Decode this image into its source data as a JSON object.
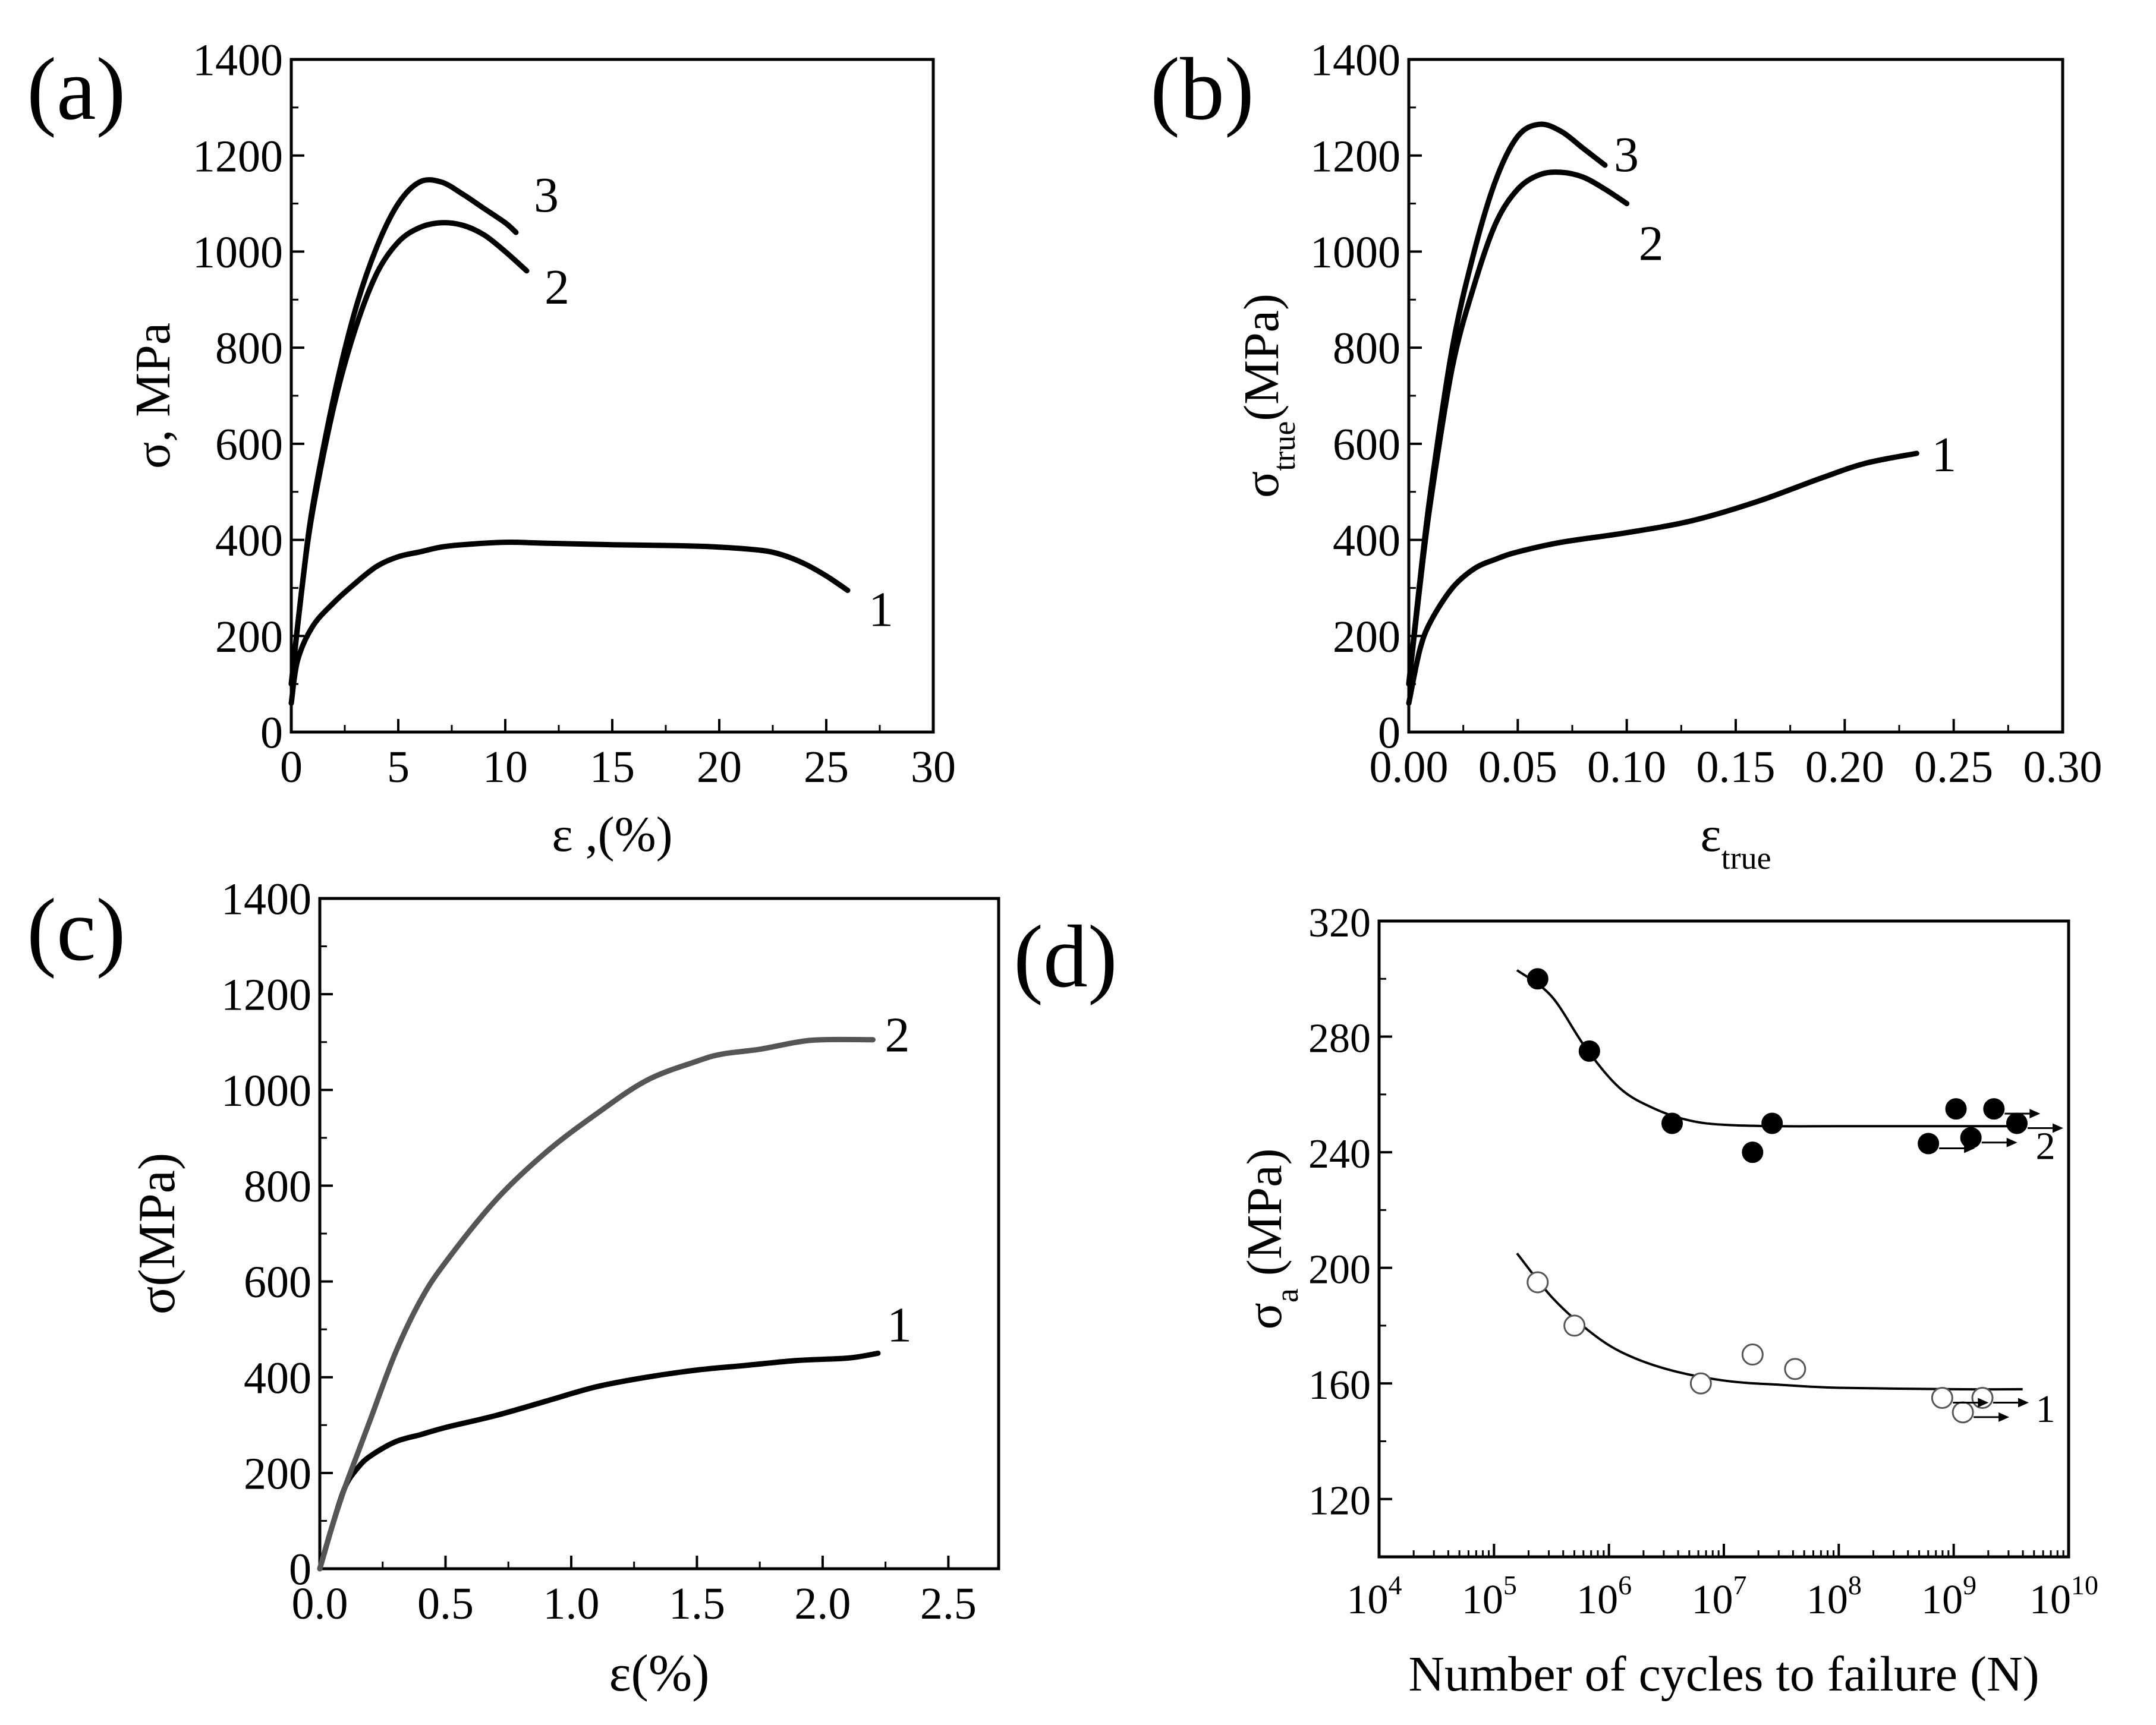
{
  "chart_data": [
    {
      "type": "line",
      "panel_label": "(a)",
      "xlabel": "ε ,(%)",
      "ylabel": "σ, MPa",
      "xlim": [
        0,
        30
      ],
      "ylim": [
        0,
        1400
      ],
      "xticks": [
        "0",
        "5",
        "10",
        "15",
        "20",
        "25",
        "30"
      ],
      "yticks": [
        "0",
        "200",
        "400",
        "600",
        "800",
        "1000",
        "1200",
        "1400"
      ],
      "series": [
        {
          "name": "1",
          "color": "#000000",
          "x": [
            0,
            0.3,
            1,
            2,
            3,
            4,
            5,
            6,
            7,
            8,
            10,
            12,
            15,
            18,
            20,
            22,
            23,
            24,
            25,
            26
          ],
          "y": [
            60,
            150,
            220,
            270,
            310,
            345,
            365,
            375,
            385,
            390,
            395,
            393,
            390,
            388,
            385,
            378,
            368,
            350,
            325,
            295
          ]
        },
        {
          "name": "2",
          "color": "#000000",
          "x": [
            0,
            0.5,
            1,
            2,
            3,
            4,
            5,
            6,
            7,
            8,
            9,
            10,
            11
          ],
          "y": [
            100,
            300,
            460,
            680,
            840,
            955,
            1020,
            1050,
            1060,
            1055,
            1035,
            1000,
            960
          ]
        },
        {
          "name": "3",
          "color": "#000000",
          "x": [
            0,
            0.5,
            1,
            2,
            3,
            4,
            5,
            6,
            7,
            8,
            9,
            10,
            10.5
          ],
          "y": [
            100,
            300,
            470,
            700,
            880,
            1010,
            1100,
            1145,
            1145,
            1120,
            1090,
            1060,
            1040
          ]
        }
      ]
    },
    {
      "type": "line",
      "panel_label": "(b)",
      "xlabel_main": "ε",
      "xlabel_sub": "true",
      "ylabel_main": "σ",
      "ylabel_sub": "true",
      "ylabel_rest": "(MPa)",
      "xlim": [
        0,
        0.3
      ],
      "ylim": [
        0,
        1400
      ],
      "xticks": [
        "0.00",
        "0.05",
        "0.10",
        "0.15",
        "0.20",
        "0.25",
        "0.30"
      ],
      "yticks": [
        "0",
        "200",
        "400",
        "600",
        "800",
        "1000",
        "1200",
        "1400"
      ],
      "series": [
        {
          "name": "1",
          "color": "#000000",
          "x": [
            0,
            0.005,
            0.01,
            0.02,
            0.03,
            0.04,
            0.05,
            0.07,
            0.1,
            0.13,
            0.16,
            0.19,
            0.21,
            0.233
          ],
          "y": [
            60,
            170,
            230,
            300,
            340,
            360,
            375,
            395,
            415,
            440,
            480,
            530,
            560,
            580
          ]
        },
        {
          "name": "2",
          "color": "#000000",
          "x": [
            0,
            0.005,
            0.01,
            0.02,
            0.03,
            0.04,
            0.05,
            0.06,
            0.07,
            0.08,
            0.09,
            0.1
          ],
          "y": [
            100,
            300,
            480,
            760,
            930,
            1060,
            1130,
            1160,
            1165,
            1155,
            1130,
            1100
          ]
        },
        {
          "name": "3",
          "color": "#000000",
          "x": [
            0,
            0.005,
            0.01,
            0.02,
            0.03,
            0.04,
            0.05,
            0.06,
            0.07,
            0.08,
            0.09
          ],
          "y": [
            100,
            310,
            500,
            800,
            1000,
            1150,
            1240,
            1265,
            1250,
            1215,
            1180
          ]
        }
      ]
    },
    {
      "type": "line",
      "panel_label": "(c)",
      "xlabel": "ε(%)",
      "ylabel": "σ(MPa)",
      "xlim": [
        0,
        2.7
      ],
      "ylim": [
        0,
        1400
      ],
      "xticks": [
        "0.0",
        "0.5",
        "1.0",
        "1.5",
        "2.0",
        "2.5"
      ],
      "yticks": [
        "0",
        "200",
        "400",
        "600",
        "800",
        "1000",
        "1200",
        "1400"
      ],
      "series": [
        {
          "name": "1",
          "color": "#000000",
          "x": [
            0,
            0.05,
            0.1,
            0.15,
            0.2,
            0.3,
            0.4,
            0.5,
            0.7,
            0.9,
            1.1,
            1.3,
            1.5,
            1.7,
            1.9,
            2.1,
            2.22
          ],
          "y": [
            0,
            90,
            170,
            210,
            235,
            265,
            280,
            295,
            320,
            350,
            380,
            400,
            415,
            425,
            435,
            440,
            450
          ]
        },
        {
          "name": "2",
          "color": "#555555",
          "x": [
            0,
            0.05,
            0.1,
            0.15,
            0.2,
            0.3,
            0.4,
            0.5,
            0.7,
            0.9,
            1.1,
            1.3,
            1.5,
            1.6,
            1.75,
            1.9,
            2.0,
            2.2
          ],
          "y": [
            0,
            90,
            170,
            240,
            310,
            450,
            560,
            640,
            770,
            870,
            950,
            1020,
            1060,
            1075,
            1085,
            1100,
            1105,
            1105
          ]
        }
      ]
    },
    {
      "type": "scatter",
      "panel_label": "(d)",
      "xlabel": "Number of cycles to failure (N)",
      "ylabel_main": "σ",
      "ylabel_sub": "a",
      "ylabel_rest": "(MPa)",
      "xscale": "log",
      "xlim_log10": [
        4,
        10
      ],
      "ylim": [
        100,
        320
      ],
      "xtick_base": "10",
      "xtick_exponents": [
        "4",
        "5",
        "6",
        "7",
        "8",
        "9",
        "10"
      ],
      "yticks": [
        "120",
        "160",
        "200",
        "240",
        "280",
        "320"
      ],
      "series": [
        {
          "name": "2",
          "marker": "filled-circle",
          "points_log10N": [
            5.38,
            5.83,
            6.55,
            7.25,
            7.42,
            8.78,
            9.02,
            9.15,
            9.35,
            9.55
          ],
          "points_stress": [
            300,
            275,
            250,
            240,
            250,
            243,
            255,
            245,
            255,
            250
          ],
          "runouts_log10N": [
            8.78,
            9.15,
            9.35,
            9.55
          ],
          "fit_log10N": [
            5.2,
            5.5,
            5.8,
            6.1,
            6.4,
            6.7,
            7.0,
            7.5,
            8.0,
            9.0,
            9.6
          ],
          "fit_stress": [
            303,
            294,
            276,
            262,
            255,
            251,
            249.5,
            249,
            249,
            249,
            249
          ]
        },
        {
          "name": "1",
          "marker": "open-circle",
          "points_log10N": [
            5.38,
            5.7,
            6.8,
            7.25,
            7.62,
            8.9,
            9.08,
            9.25
          ],
          "points_stress": [
            195,
            180,
            160,
            170,
            165,
            155,
            150,
            155
          ],
          "runouts_log10N": [
            8.9,
            9.08,
            9.25
          ],
          "fit_log10N": [
            5.2,
            5.5,
            5.8,
            6.1,
            6.5,
            7.0,
            7.5,
            8.0,
            9.0,
            9.6
          ],
          "fit_stress": [
            205,
            190,
            179,
            171,
            165,
            161,
            159.5,
            158.5,
            158,
            158
          ]
        }
      ]
    }
  ]
}
